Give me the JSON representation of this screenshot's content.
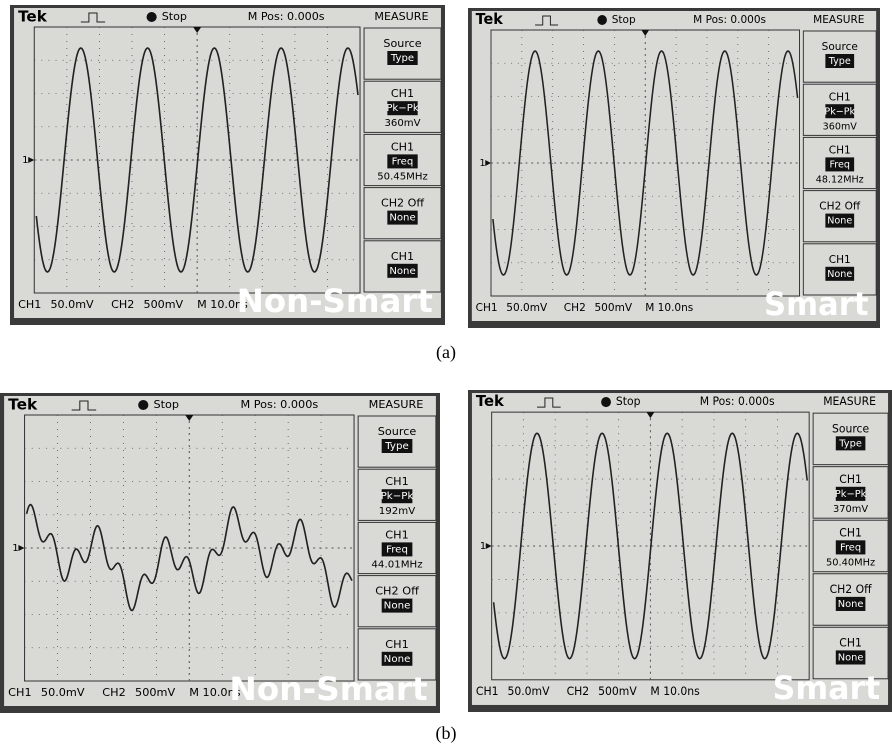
{
  "panels": [
    {
      "header": {
        "brand": "Tek",
        "status": "Stop",
        "position": "M Pos: 0.000s",
        "menu_title": "MEASURE"
      },
      "menu": [
        {
          "title": "Source",
          "highlight": "Type"
        },
        {
          "title": "CH1",
          "highlight": "Pk−Pk",
          "value": "360mV"
        },
        {
          "title": "CH1",
          "highlight": "Freq",
          "value": "50.45MHz"
        },
        {
          "title": "CH2 Off",
          "highlight": "None"
        },
        {
          "title": "CH1",
          "highlight": "None"
        }
      ],
      "marker": "1",
      "footer": {
        "ch1": "CH1",
        "ch1_scale": "50.0mV",
        "ch2": "CH2",
        "ch2_scale": "500mV",
        "time": "M 10.0ns"
      },
      "label": "Non-Smart"
    },
    {
      "header": {
        "brand": "Tek",
        "status": "Stop",
        "position": "M Pos: 0.000s",
        "menu_title": "MEASURE"
      },
      "menu": [
        {
          "title": "Source",
          "highlight": "Type"
        },
        {
          "title": "CH1",
          "highlight": "Pk−Pk",
          "value": "360mV"
        },
        {
          "title": "CH1",
          "highlight": "Freq",
          "value": "48.12MHz"
        },
        {
          "title": "CH2 Off",
          "highlight": "None"
        },
        {
          "title": "CH1",
          "highlight": "None"
        }
      ],
      "marker": "1",
      "footer": {
        "ch1": "CH1",
        "ch1_scale": "50.0mV",
        "ch2": "CH2",
        "ch2_scale": "500mV",
        "time": "M 10.0ns"
      },
      "label": "Smart"
    },
    {
      "header": {
        "brand": "Tek",
        "status": "Stop",
        "position": "M Pos: 0.000s",
        "menu_title": "MEASURE"
      },
      "menu": [
        {
          "title": "Source",
          "highlight": "Type"
        },
        {
          "title": "CH1",
          "highlight": "Pk−Pk",
          "value": "192mV"
        },
        {
          "title": "CH1",
          "highlight": "Freq",
          "value": "44.01MHz"
        },
        {
          "title": "CH2 Off",
          "highlight": "None"
        },
        {
          "title": "CH1",
          "highlight": "None"
        }
      ],
      "marker": "1",
      "footer": {
        "ch1": "CH1",
        "ch1_scale": "50.0mV",
        "ch2": "CH2",
        "ch2_scale": "500mV",
        "time": "M 10.0ns"
      },
      "label": "Non-Smart"
    },
    {
      "header": {
        "brand": "Tek",
        "status": "Stop",
        "position": "M Pos: 0.000s",
        "menu_title": "MEASURE"
      },
      "menu": [
        {
          "title": "Source",
          "highlight": "Type"
        },
        {
          "title": "CH1",
          "highlight": "Pk−Pk",
          "value": "370mV"
        },
        {
          "title": "CH1",
          "highlight": "Freq",
          "value": "50.40MHz"
        },
        {
          "title": "CH2 Off",
          "highlight": "None"
        },
        {
          "title": "CH1",
          "highlight": "None"
        }
      ],
      "marker": "1",
      "footer": {
        "ch1": "CH1",
        "ch1_scale": "50.0mV",
        "ch2": "CH2",
        "ch2_scale": "500mV",
        "time": "M 10.0ns"
      },
      "label": "Smart"
    }
  ],
  "captions": [
    "(a)",
    "(b)"
  ]
}
